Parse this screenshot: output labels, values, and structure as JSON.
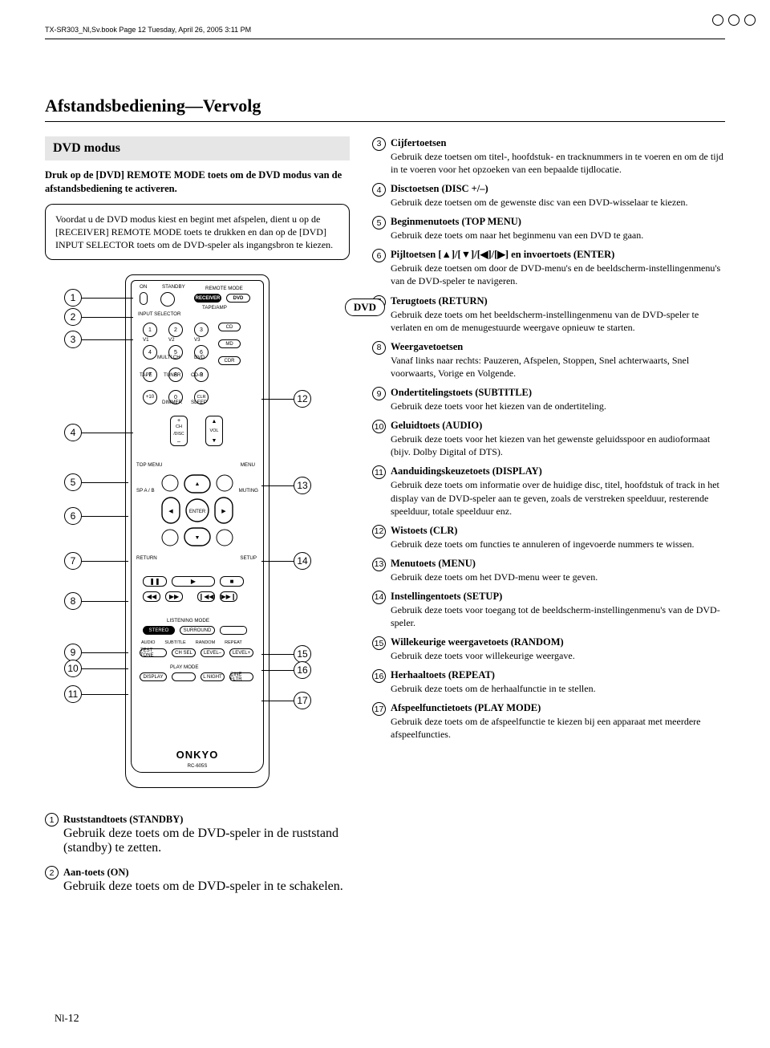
{
  "header": "TX-SR303_Nl,Sv.book  Page 12  Tuesday, April 26, 2005  3:11 PM",
  "section_title": "Afstandsbediening",
  "section_sub": "—Vervolg",
  "mode_box": "DVD modus",
  "intro": "Druk op de [DVD] REMOTE MODE toets om de DVD modus van de afstandsbediening te activeren.",
  "note": "Voordat u de DVD modus kiest en begint met afspelen, dient u op de [RECEIVER] REMOTE MODE toets te drukken en dan op de [DVD] INPUT SELECTOR toets om de DVD-speler als ingangsbron te kiezen.",
  "dvd_tag": "DVD",
  "remote": {
    "labels": {
      "on": "ON",
      "standby": "STANDBY",
      "remote_mode": "REMOTE MODE",
      "receiver": "RECEIVER",
      "dvd": "DVD",
      "tape_amp": "TAPE/AMP",
      "input_selector": "INPUT SELECTOR",
      "cd": "CD",
      "md": "MD",
      "cdr": "CDR",
      "v1": "V1",
      "v2": "V2",
      "v3": "V3",
      "multi": "MULTI CH",
      "dvd2": "DVD",
      "tape": "TAPE",
      "tuner": "TUNER",
      "cdr2": "CD-R",
      "dimmer": "DIMMER",
      "sleep": "SLEEP",
      "ch": "CH",
      "disc": "/DISC",
      "vol": "VOL",
      "topmenu": "TOP MENU",
      "menu": "MENU",
      "spab": "SP A / B",
      "muting": "MUTING",
      "enter": "ENTER",
      "return": "RETURN",
      "setup": "SETUP",
      "listening": "LISTENING MODE",
      "stereo": "STEREO",
      "surround": "SURROUND",
      "audio": "AUDIO",
      "subtitle": "SUBTITLE",
      "random": "RANDOM",
      "repeat": "REPEAT",
      "testtone": "TEST TONE",
      "chsel": "CH SEL",
      "leveldn": "LEVEL–",
      "levelup": "LEVEL+",
      "playmode": "PLAY MODE",
      "display": "DISPLAY",
      "lnight": "L NIGHT",
      "cinefltr": "CINE FLTR",
      "plus10": "+10",
      "clr": "CLR"
    },
    "logo": "ONKYO",
    "model": "RC-605S",
    "numbers": [
      "1",
      "2",
      "3",
      "4",
      "5",
      "6",
      "7",
      "8",
      "9",
      "0"
    ]
  },
  "callouts_left": [
    "1",
    "2",
    "3",
    "4",
    "5",
    "6",
    "7",
    "8",
    "9",
    "10",
    "11"
  ],
  "callouts_right": [
    "12",
    "13",
    "14",
    "15",
    "16",
    "17"
  ],
  "bottom_left_items": [
    {
      "n": "1",
      "t": "Ruststandtoets (STANDBY)",
      "d": "Gebruik deze toets om de DVD-speler in de rust­stand (standby) te zetten."
    },
    {
      "n": "2",
      "t": "Aan-toets (ON)",
      "d": "Gebruik deze toets om de DVD-speler in te schakelen."
    }
  ],
  "right_items": [
    {
      "n": "3",
      "t": "Cijfertoetsen",
      "d": "Gebruik deze toetsen om titel-, hoofdstuk- en track­nummers in te voeren en om de tijd in te voeren voor het opzoeken van een bepaalde tijdlocatie."
    },
    {
      "n": "4",
      "t": "Disctoetsen (DISC +/–)",
      "d": "Gebruik deze toetsen om de gewenste disc van een DVD-wisselaar te kiezen."
    },
    {
      "n": "5",
      "t": "Beginmenutoets (TOP MENU)",
      "d": "Gebruik deze toets om naar het beginmenu van een DVD te gaan."
    },
    {
      "n": "6",
      "t": "Pijltoetsen [▲]/[▼]/[◀]/[▶] en invoertoets (ENTER)",
      "d": "Gebruik deze toetsen om door de DVD-menu's en de beeldscherm-instellingenmenu's van de DVD-speler te navigeren."
    },
    {
      "n": "7",
      "t": "Terugtoets (RETURN)",
      "d": "Gebruik deze toets om het beeldscherm-instellin­genmenu van de DVD-speler te verlaten en om de menugestuurde weergave opnieuw te starten."
    },
    {
      "n": "8",
      "t": "Weergavetoetsen",
      "d": "Vanaf links naar rechts: Pauzeren, Afspelen, Stop­pen, Snel achterwaarts, Snel voorwaarts, Vorige en Volgende."
    },
    {
      "n": "9",
      "t": "Ondertitelingstoets (SUBTITLE)",
      "d": "Gebruik deze toets voor het kiezen van de ondertite­ling."
    },
    {
      "n": "10",
      "t": "Geluidtoets (AUDIO)",
      "d": "Gebruik deze toets voor het kiezen van het gewenste geluidsspoor en audioformaat (bijv. Dolby Digital of DTS)."
    },
    {
      "n": "11",
      "t": "Aanduidingskeuzetoets (DISPLAY)",
      "d": "Gebruik deze toets om informatie over de huidige disc, titel, hoofdstuk of track in het display van de DVD-speler aan te geven, zoals de verstreken speel­duur, resterende speelduur, totale speelduur enz."
    },
    {
      "n": "12",
      "t": "Wistoets (CLR)",
      "d": "Gebruik deze toets om functies te annuleren of inge­voerde nummers te wissen."
    },
    {
      "n": "13",
      "t": "Menutoets (MENU)",
      "d": "Gebruik deze toets om het DVD-menu weer te geven."
    },
    {
      "n": "14",
      "t": "Instellingentoets (SETUP)",
      "d": "Gebruik deze toets voor toegang tot de beeld­scherm-instellingenmenu's van de DVD-speler."
    },
    {
      "n": "15",
      "t": "Willekeurige weergavetoets (RANDOM)",
      "d": "Gebruik deze toets voor willekeurige weergave."
    },
    {
      "n": "16",
      "t": "Herhaaltoets (REPEAT)",
      "d": "Gebruik deze toets om de herhaalfunctie in te stellen."
    },
    {
      "n": "17",
      "t": "Afspeelfunctietoets (PLAY MODE)",
      "d": "Gebruik deze toets om de afspeelfunctie te kiezen bij een apparaat met meerdere afspeelfuncties."
    }
  ],
  "pagenum_prefix": "Nl-",
  "pagenum": "12"
}
